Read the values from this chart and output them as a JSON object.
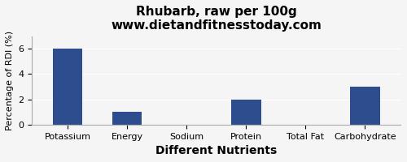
{
  "title": "Rhubarb, raw per 100g",
  "subtitle": "www.dietandfitnesstoday.com",
  "xlabel": "Different Nutrients",
  "ylabel": "Percentage of RDI (%)",
  "categories": [
    "Potassium",
    "Energy",
    "Sodium",
    "Protein",
    "Total Fat",
    "Carbohydrate"
  ],
  "values": [
    6.0,
    1.0,
    0.0,
    2.0,
    0.0,
    3.0
  ],
  "bar_color": "#2e4d8e",
  "ylim": [
    0,
    7
  ],
  "yticks": [
    0,
    2,
    4,
    6
  ],
  "background_color": "#f5f5f5",
  "title_fontsize": 11,
  "subtitle_fontsize": 9,
  "xlabel_fontsize": 10,
  "ylabel_fontsize": 8,
  "tick_fontsize": 8
}
